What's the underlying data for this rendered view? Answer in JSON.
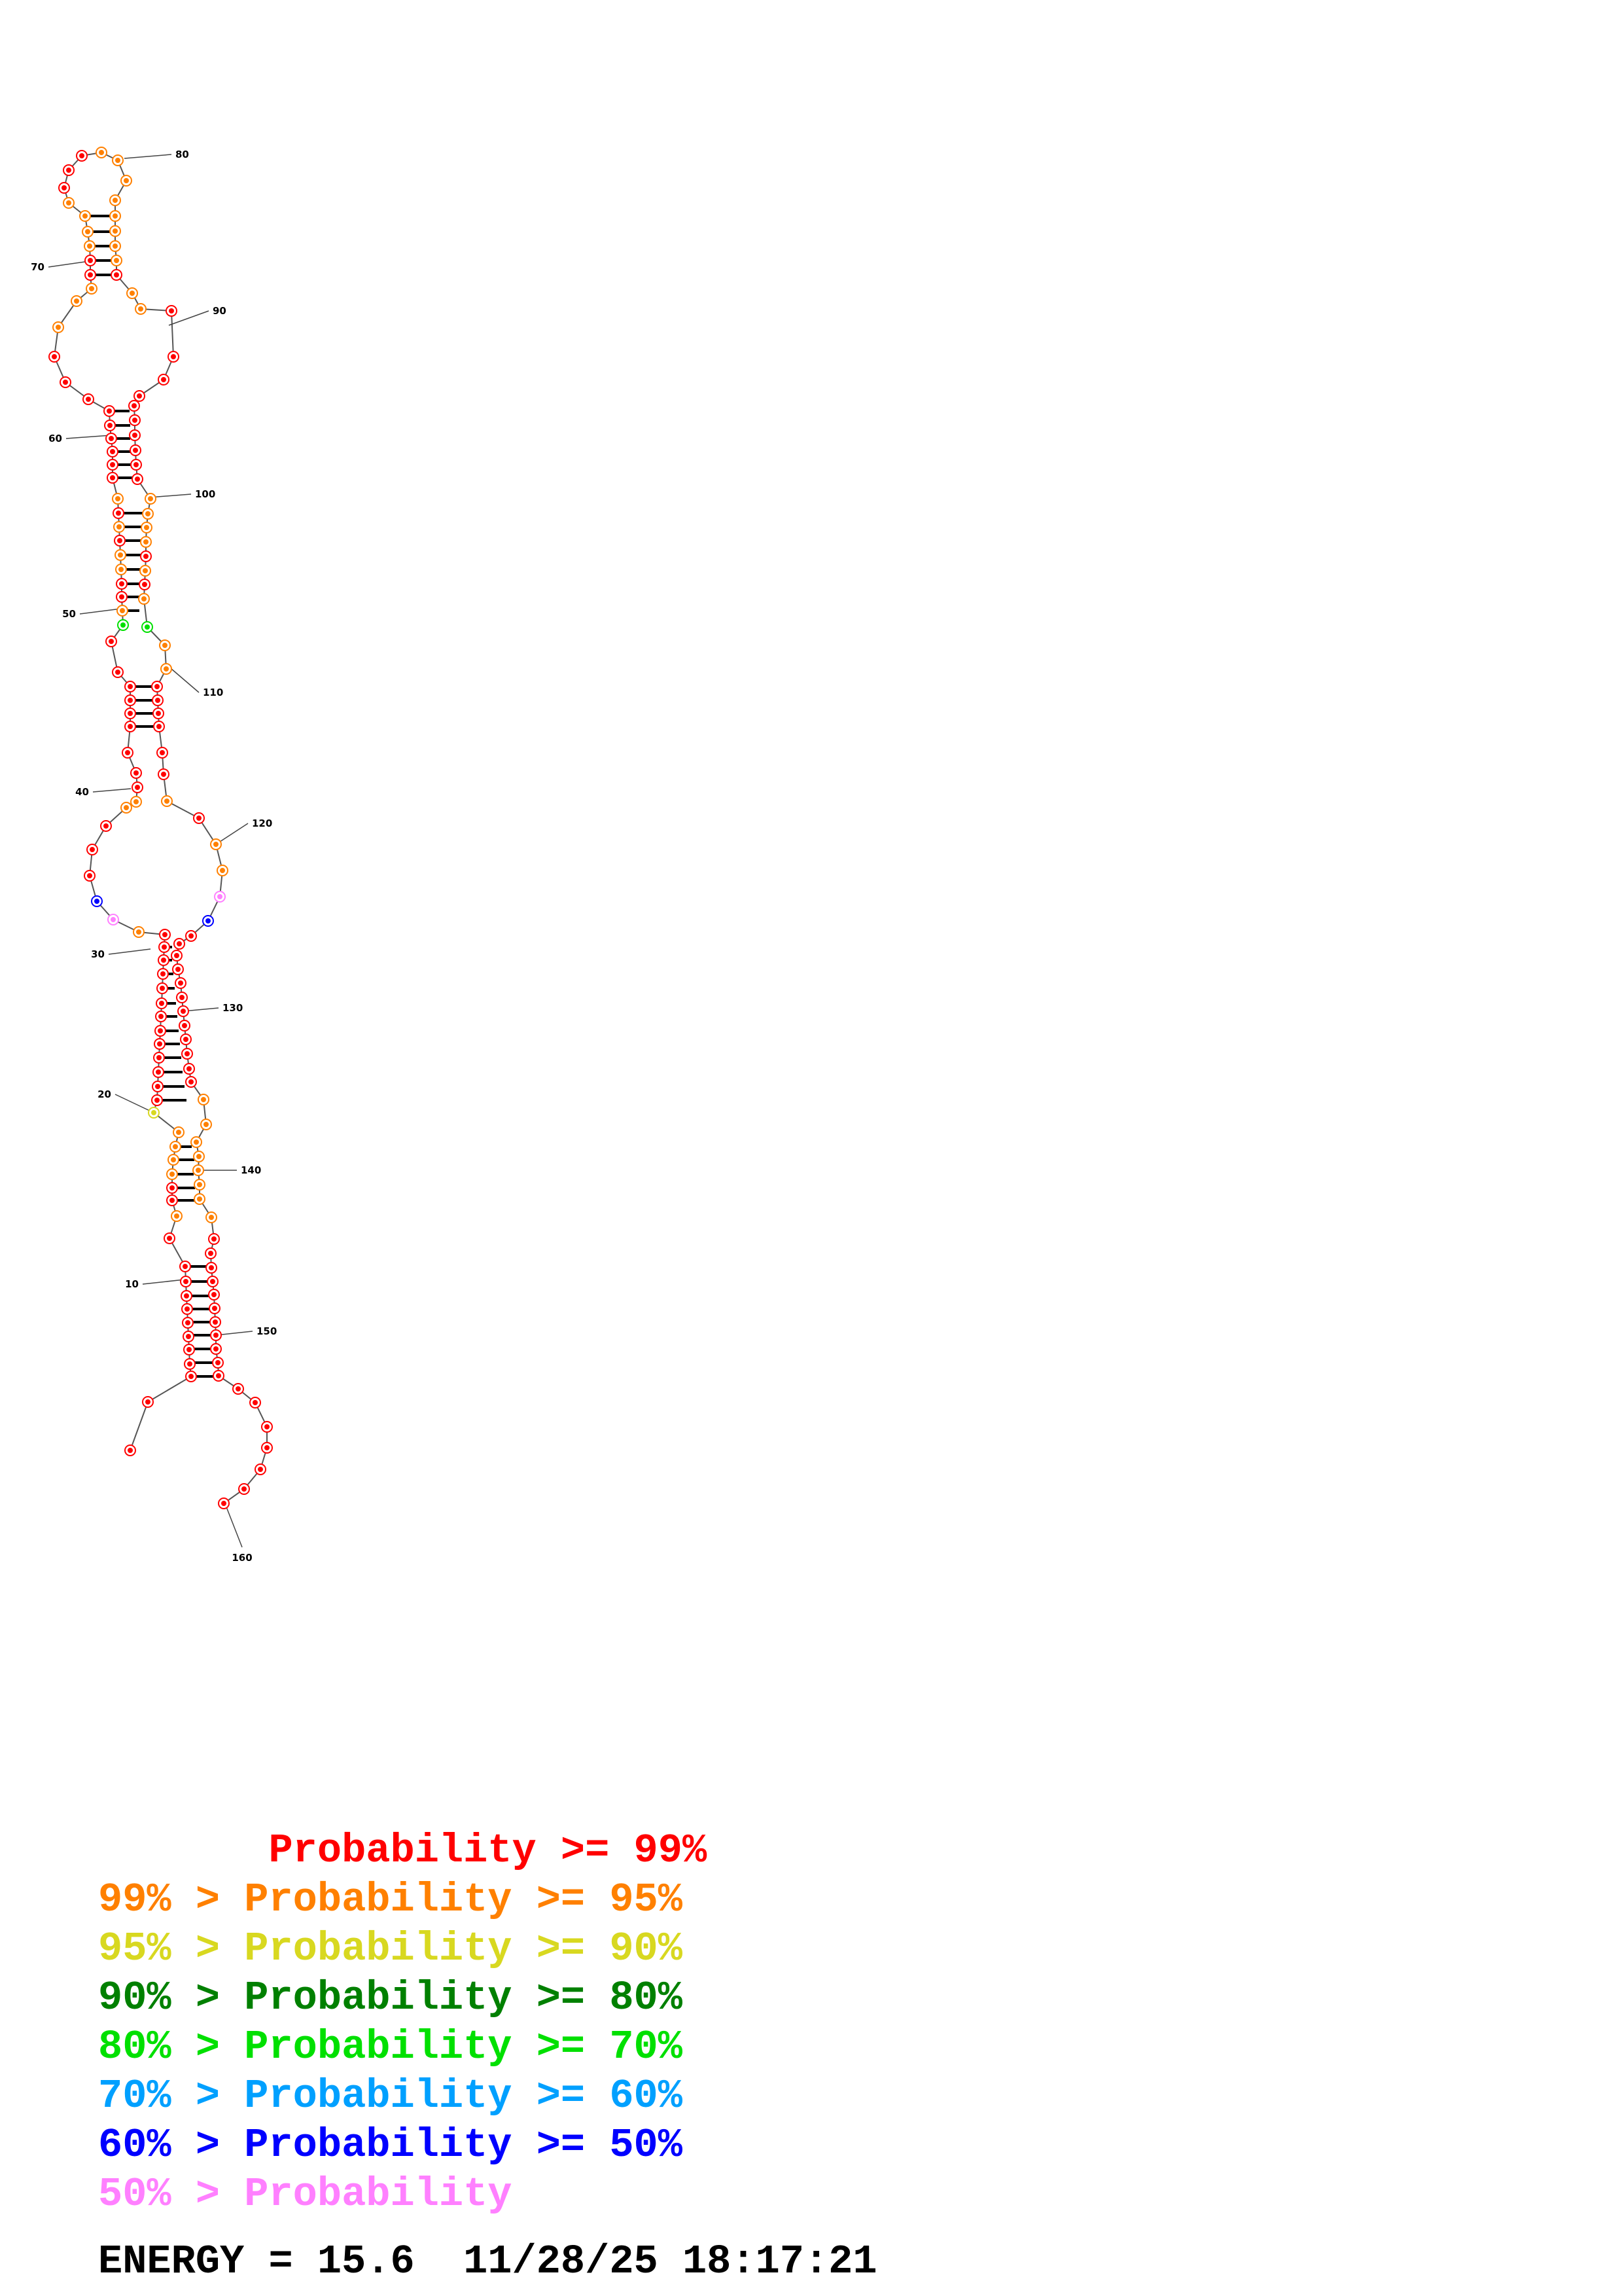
{
  "structure": {
    "tick_labels": [
      "10",
      "20",
      "30",
      "40",
      "50",
      "60",
      "70",
      "80",
      "90",
      "100",
      "110",
      "120",
      "130",
      "140",
      "150",
      "160"
    ],
    "colors": {
      "red": "#ff0000",
      "orange": "#ff8000",
      "yellow": "#d8d820",
      "darkgreen": "#008000",
      "green": "#00e000",
      "cyan": "#00a0ff",
      "blue": "#0000ff",
      "pink": "#ff80ff"
    }
  },
  "legend": [
    {
      "prefix": "    ",
      "text": "Probability >= 99%",
      "color": "#ff0000"
    },
    {
      "prefix": "99% > ",
      "text": "Probability >= 95%",
      "color": "#ff8000"
    },
    {
      "prefix": "95% > ",
      "text": "Probability >= 90%",
      "color": "#d8d820"
    },
    {
      "prefix": "90% > ",
      "text": "Probability >= 80%",
      "color": "#008000"
    },
    {
      "prefix": "80% > ",
      "text": "Probability >= 70%",
      "color": "#00e000"
    },
    {
      "prefix": "70% > ",
      "text": "Probability >= 60%",
      "color": "#00a0ff"
    },
    {
      "prefix": "60% > ",
      "text": "Probability >= 50%",
      "color": "#0000ff"
    },
    {
      "prefix": "50% > ",
      "text": "Probability",
      "color": "#ff80ff"
    }
  ],
  "energy_line": "ENERGY = 15.6  11/28/25 18:17:21"
}
